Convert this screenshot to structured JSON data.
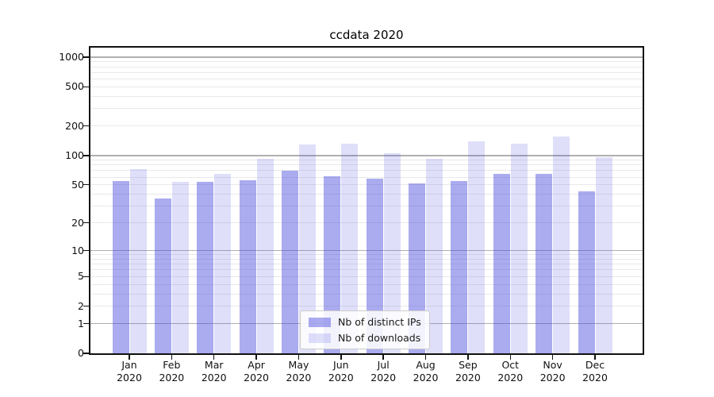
{
  "chart_data": {
    "type": "bar",
    "title": "ccdata 2020",
    "categories": [
      "Jan",
      "Feb",
      "Mar",
      "Apr",
      "May",
      "Jun",
      "Jul",
      "Aug",
      "Sep",
      "Oct",
      "Nov",
      "Dec"
    ],
    "category_year": "2020",
    "series": [
      {
        "name": "Nb of distinct IPs",
        "color": "rgba(68,68,221,0.45)",
        "values": [
          55,
          36,
          54,
          56,
          70,
          61,
          58,
          52,
          55,
          65,
          65,
          43
        ]
      },
      {
        "name": "Nb of downloads",
        "color": "rgba(80,80,230,0.18)",
        "values": [
          72,
          54,
          65,
          93,
          129,
          133,
          106,
          93,
          139,
          131,
          155,
          96
        ]
      }
    ],
    "xlabel": "",
    "ylabel": "",
    "yscale": "log1p",
    "ylim": [
      0,
      1250
    ],
    "yticks": [
      0,
      1,
      2,
      5,
      10,
      20,
      50,
      100,
      200,
      500,
      1000
    ],
    "grid": {
      "major": [
        1,
        10,
        100,
        1000
      ],
      "minor": [
        2,
        3,
        4,
        5,
        6,
        7,
        8,
        9,
        20,
        30,
        40,
        50,
        60,
        70,
        80,
        90,
        200,
        300,
        400,
        500,
        600,
        700,
        800,
        900
      ],
      "major_color": "#b0b0b0",
      "minor_color": "#e9e9e9"
    },
    "legend": {
      "position": "lower center"
    },
    "colors": {
      "background": "#ffffff",
      "spine": "#111111",
      "text": "#1a1a1a",
      "legend_border": "#cccccc"
    }
  }
}
